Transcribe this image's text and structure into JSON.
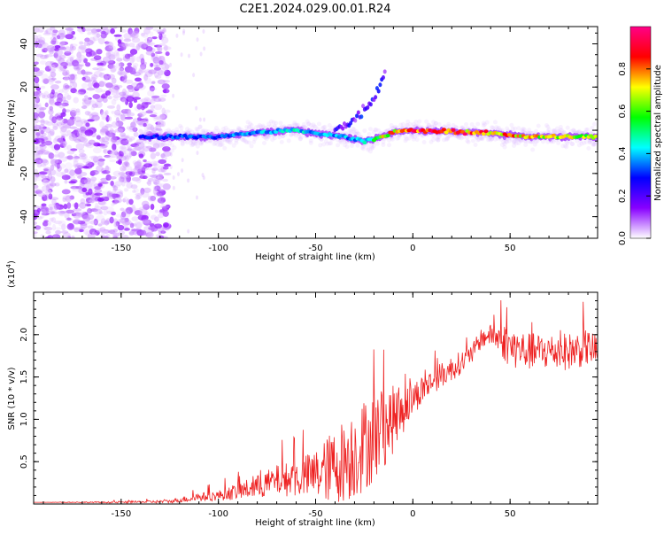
{
  "title": "C2E1.2024.029.00.01.R24",
  "colors": {
    "snr_line": "#ee2222",
    "background": "#ffffff",
    "axis": "#000000"
  },
  "chart_data": [
    {
      "type": "heatmap",
      "xlabel": "Height of straight line (km)",
      "ylabel": "Frequency (Hz)",
      "xlim": [
        -195,
        95
      ],
      "ylim": [
        -50,
        48
      ],
      "x_ticks": [
        "-150",
        "-100",
        "-50",
        "0",
        "50"
      ],
      "x_tick_values": [
        -150,
        -100,
        -50,
        0,
        50
      ],
      "y_ticks": [
        "-40",
        "-20",
        "0",
        "20",
        "40"
      ],
      "y_tick_values": [
        -40,
        -20,
        0,
        20,
        40
      ],
      "colorbar": {
        "label": "Normalized spectral amplitude",
        "range": [
          0,
          1
        ],
        "ticks": [
          "0.0",
          "0.2",
          "0.4",
          "0.6",
          "0.8"
        ],
        "tick_values": [
          0,
          0.2,
          0.4,
          0.6,
          0.8
        ],
        "colormap": [
          "#ffffff",
          "#8800ff",
          "#0000ff",
          "#00ffff",
          "#00ff00",
          "#ffff00",
          "#ff0000",
          "#ff0088"
        ]
      },
      "noise_region_x": [
        -195,
        -130
      ],
      "ridge": {
        "x": [
          -140,
          -120,
          -100,
          -80,
          -60,
          -45,
          -35,
          -25,
          -20,
          -10,
          0,
          10,
          20,
          30,
          40,
          50,
          60,
          70,
          80,
          90
        ],
        "freq": [
          -3,
          -3,
          -3,
          -1,
          0,
          -2,
          -3,
          -5,
          -4,
          -1,
          0,
          -0.5,
          -0.5,
          -1,
          -1.5,
          -2,
          -3,
          -3,
          -3,
          -3
        ],
        "amplitude": [
          0.3,
          0.35,
          0.35,
          0.4,
          0.45,
          0.4,
          0.4,
          0.45,
          0.6,
          0.8,
          0.9,
          0.9,
          0.95,
          0.85,
          0.85,
          0.8,
          0.75,
          0.75,
          0.7,
          0.65
        ]
      },
      "branch": {
        "x": [
          -40,
          -30,
          -20,
          -14
        ],
        "freq": [
          0,
          5,
          15,
          28
        ]
      }
    },
    {
      "type": "line",
      "xlabel": "Height of straight line (km)",
      "ylabel": "SNR (10 * v/v)",
      "y_multiplier": "(x10",
      "y_multiplier_exp": "4",
      "y_multiplier_close": ")",
      "xlim": [
        -195,
        95
      ],
      "ylim": [
        0,
        2.5
      ],
      "x_ticks": [
        "-150",
        "-100",
        "-50",
        "0",
        "50"
      ],
      "x_tick_values": [
        -150,
        -100,
        -50,
        0,
        50
      ],
      "y_ticks": [
        "0.5",
        "1.0",
        "1.5",
        "2.0"
      ],
      "y_tick_values": [
        0.5,
        1.0,
        1.5,
        2.0
      ],
      "series": [
        {
          "x": [
            -195,
            -150,
            -125,
            -110,
            -100,
            -90,
            -80,
            -70,
            -60,
            -50,
            -40,
            -30,
            -20,
            -10,
            0,
            10,
            20,
            30,
            35,
            40,
            45,
            50,
            60,
            70,
            80,
            90,
            95
          ],
          "y": [
            0.02,
            0.02,
            0.03,
            0.08,
            0.1,
            0.15,
            0.2,
            0.28,
            0.3,
            0.35,
            0.45,
            0.6,
            0.8,
            1.0,
            1.25,
            1.45,
            1.6,
            1.75,
            1.95,
            2.0,
            1.95,
            1.85,
            1.8,
            1.8,
            1.8,
            1.85,
            1.8
          ],
          "noise": [
            0.0,
            0.01,
            0.02,
            0.05,
            0.06,
            0.1,
            0.14,
            0.18,
            0.22,
            0.3,
            0.45,
            0.55,
            0.55,
            0.4,
            0.2,
            0.15,
            0.15,
            0.12,
            0.12,
            0.12,
            0.2,
            0.25,
            0.22,
            0.22,
            0.22,
            0.22,
            0.2
          ]
        }
      ]
    }
  ]
}
